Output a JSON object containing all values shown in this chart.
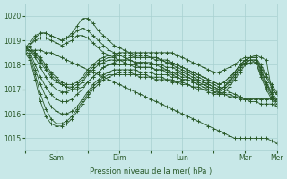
{
  "bg_color": "#c8e8e8",
  "grid_color": "#a8d0d0",
  "line_color": "#2a5a2a",
  "ylabel": "Pression niveau de la mer( hPa )",
  "ylim": [
    1014.5,
    1020.5
  ],
  "yticks": [
    1015,
    1016,
    1017,
    1018,
    1019,
    1020
  ],
  "xtick_labels": [
    "",
    "Sam",
    "",
    "Dim",
    "",
    "Lun",
    "",
    "Mar",
    "Mer"
  ],
  "xtick_positions": [
    0,
    24,
    48,
    72,
    96,
    120,
    144,
    168,
    192
  ],
  "series": [
    {
      "x": [
        0,
        4,
        8,
        12,
        16,
        20,
        24,
        28,
        32,
        36,
        40,
        44,
        48,
        52,
        56,
        60,
        64,
        68,
        72,
        76,
        80,
        84,
        88,
        92,
        96,
        100,
        104,
        108,
        112,
        116,
        120,
        124,
        128,
        132,
        136,
        140,
        144,
        148,
        152,
        156,
        160,
        164,
        168,
        172,
        176,
        180,
        184,
        188,
        192
      ],
      "y": [
        1018.6,
        1018.6,
        1018.6,
        1018.6,
        1018.5,
        1018.5,
        1018.4,
        1018.3,
        1018.2,
        1018.1,
        1018.0,
        1017.9,
        1017.8,
        1017.7,
        1017.6,
        1017.5,
        1017.4,
        1017.3,
        1017.2,
        1017.1,
        1017.0,
        1016.9,
        1016.8,
        1016.7,
        1016.6,
        1016.5,
        1016.4,
        1016.3,
        1016.2,
        1016.1,
        1016.0,
        1015.9,
        1015.8,
        1015.7,
        1015.6,
        1015.5,
        1015.4,
        1015.3,
        1015.2,
        1015.1,
        1015.0,
        1015.0,
        1015.0,
        1015.0,
        1015.0,
        1015.0,
        1015.0,
        1014.9,
        1014.8
      ]
    },
    {
      "x": [
        0,
        4,
        8,
        12,
        16,
        20,
        24,
        28,
        32,
        36,
        40,
        44,
        48,
        52,
        56,
        60,
        64,
        68,
        72,
        76,
        80,
        84,
        88,
        92,
        96,
        100,
        104,
        108,
        112,
        116,
        120,
        124,
        128,
        132,
        136,
        140,
        144,
        148,
        152,
        156,
        160,
        164,
        168,
        172,
        176,
        180,
        184,
        188,
        192
      ],
      "y": [
        1018.7,
        1018.6,
        1018.5,
        1018.3,
        1018.0,
        1017.7,
        1017.5,
        1017.3,
        1017.2,
        1017.2,
        1017.3,
        1017.5,
        1017.8,
        1018.0,
        1018.2,
        1018.3,
        1018.4,
        1018.4,
        1018.5,
        1018.5,
        1018.5,
        1018.5,
        1018.5,
        1018.5,
        1018.5,
        1018.5,
        1018.5,
        1018.5,
        1018.5,
        1018.4,
        1018.3,
        1018.2,
        1018.1,
        1018.0,
        1017.9,
        1017.8,
        1017.7,
        1017.7,
        1017.8,
        1017.9,
        1018.0,
        1018.2,
        1018.3,
        1018.3,
        1018.4,
        1018.3,
        1018.2,
        1017.0,
        1016.8
      ]
    },
    {
      "x": [
        0,
        4,
        8,
        12,
        16,
        20,
        24,
        28,
        32,
        36,
        40,
        44,
        48,
        52,
        56,
        60,
        64,
        68,
        72,
        76,
        80,
        84,
        88,
        92,
        96,
        100,
        104,
        108,
        112,
        116,
        120,
        124,
        128,
        132,
        136,
        140,
        144,
        148,
        152,
        156,
        160,
        164,
        168,
        172,
        176,
        180,
        184,
        188,
        192
      ],
      "y": [
        1018.7,
        1018.6,
        1018.4,
        1018.1,
        1017.8,
        1017.5,
        1017.3,
        1017.2,
        1017.1,
        1017.1,
        1017.2,
        1017.4,
        1017.7,
        1017.9,
        1018.1,
        1018.2,
        1018.3,
        1018.3,
        1018.4,
        1018.4,
        1018.4,
        1018.3,
        1018.3,
        1018.3,
        1018.3,
        1018.2,
        1018.2,
        1018.1,
        1018.1,
        1018.0,
        1017.9,
        1017.8,
        1017.7,
        1017.6,
        1017.5,
        1017.4,
        1017.3,
        1017.2,
        1017.3,
        1017.5,
        1017.7,
        1018.0,
        1018.2,
        1018.3,
        1018.3,
        1017.8,
        1017.3,
        1016.8,
        1016.5
      ]
    },
    {
      "x": [
        0,
        4,
        8,
        12,
        16,
        20,
        24,
        28,
        32,
        36,
        40,
        44,
        48,
        52,
        56,
        60,
        64,
        68,
        72,
        76,
        80,
        84,
        88,
        92,
        96,
        100,
        104,
        108,
        112,
        116,
        120,
        124,
        128,
        132,
        136,
        140,
        144,
        148,
        152,
        156,
        160,
        164,
        168,
        172,
        176,
        180,
        184,
        188,
        192
      ],
      "y": [
        1018.8,
        1018.7,
        1018.5,
        1018.2,
        1017.9,
        1017.6,
        1017.4,
        1017.2,
        1017.1,
        1017.0,
        1017.0,
        1017.1,
        1017.3,
        1017.5,
        1017.7,
        1017.9,
        1018.0,
        1018.1,
        1018.2,
        1018.2,
        1018.3,
        1018.3,
        1018.3,
        1018.3,
        1018.3,
        1018.3,
        1018.2,
        1018.2,
        1018.1,
        1018.0,
        1017.9,
        1017.8,
        1017.7,
        1017.6,
        1017.5,
        1017.4,
        1017.3,
        1017.2,
        1017.3,
        1017.5,
        1017.7,
        1018.0,
        1018.2,
        1018.3,
        1018.3,
        1018.0,
        1017.6,
        1017.2,
        1016.9
      ]
    },
    {
      "x": [
        0,
        4,
        8,
        12,
        16,
        20,
        24,
        28,
        32,
        36,
        40,
        44,
        48,
        52,
        56,
        60,
        64,
        68,
        72,
        76,
        80,
        84,
        88,
        92,
        96,
        100,
        104,
        108,
        112,
        116,
        120,
        124,
        128,
        132,
        136,
        140,
        144,
        148,
        152,
        156,
        160,
        164,
        168,
        172,
        176,
        180,
        184,
        188,
        192
      ],
      "y": [
        1018.7,
        1018.6,
        1018.3,
        1017.9,
        1017.5,
        1017.2,
        1017.0,
        1016.9,
        1016.9,
        1017.0,
        1017.1,
        1017.3,
        1017.6,
        1017.8,
        1018.0,
        1018.1,
        1018.2,
        1018.2,
        1018.2,
        1018.2,
        1018.2,
        1018.1,
        1018.1,
        1018.1,
        1018.1,
        1018.0,
        1018.0,
        1017.9,
        1017.9,
        1017.8,
        1017.7,
        1017.6,
        1017.5,
        1017.4,
        1017.3,
        1017.2,
        1017.1,
        1017.0,
        1017.1,
        1017.4,
        1017.7,
        1018.0,
        1018.2,
        1018.3,
        1018.3,
        1017.9,
        1017.5,
        1017.1,
        1016.8
      ]
    },
    {
      "x": [
        0,
        4,
        8,
        12,
        16,
        20,
        24,
        28,
        32,
        36,
        40,
        44,
        48,
        52,
        56,
        60,
        64,
        68,
        72,
        76,
        80,
        84,
        88,
        92,
        96,
        100,
        104,
        108,
        112,
        116,
        120,
        124,
        128,
        132,
        136,
        140,
        144,
        148,
        152,
        156,
        160,
        164,
        168,
        172,
        176,
        180,
        184,
        188,
        192
      ],
      "y": [
        1018.7,
        1018.5,
        1018.0,
        1017.5,
        1017.1,
        1016.8,
        1016.6,
        1016.5,
        1016.5,
        1016.6,
        1016.8,
        1017.0,
        1017.3,
        1017.5,
        1017.7,
        1017.9,
        1018.0,
        1018.0,
        1018.0,
        1018.0,
        1018.0,
        1017.9,
        1017.9,
        1017.9,
        1017.9,
        1017.8,
        1017.8,
        1017.8,
        1017.7,
        1017.7,
        1017.6,
        1017.5,
        1017.4,
        1017.4,
        1017.3,
        1017.2,
        1017.1,
        1017.0,
        1017.1,
        1017.3,
        1017.6,
        1017.9,
        1018.1,
        1018.2,
        1018.2,
        1017.8,
        1017.3,
        1016.9,
        1016.6
      ]
    },
    {
      "x": [
        0,
        4,
        8,
        12,
        16,
        20,
        24,
        28,
        32,
        36,
        40,
        44,
        48,
        52,
        56,
        60,
        64,
        68,
        72,
        76,
        80,
        84,
        88,
        92,
        96,
        100,
        104,
        108,
        112,
        116,
        120,
        124,
        128,
        132,
        136,
        140,
        144,
        148,
        152,
        156,
        160,
        164,
        168,
        172,
        176,
        180,
        184,
        188,
        192
      ],
      "y": [
        1018.6,
        1018.4,
        1017.8,
        1017.2,
        1016.7,
        1016.3,
        1016.1,
        1016.0,
        1016.0,
        1016.1,
        1016.3,
        1016.6,
        1016.9,
        1017.2,
        1017.4,
        1017.6,
        1017.7,
        1017.8,
        1017.8,
        1017.8,
        1017.8,
        1017.8,
        1017.7,
        1017.7,
        1017.7,
        1017.6,
        1017.6,
        1017.6,
        1017.5,
        1017.5,
        1017.4,
        1017.4,
        1017.3,
        1017.2,
        1017.2,
        1017.1,
        1017.0,
        1017.0,
        1017.1,
        1017.3,
        1017.6,
        1017.9,
        1018.1,
        1018.2,
        1018.2,
        1017.7,
        1017.2,
        1016.8,
        1016.5
      ]
    },
    {
      "x": [
        0,
        4,
        8,
        12,
        16,
        20,
        24,
        28,
        32,
        36,
        40,
        44,
        48,
        52,
        56,
        60,
        64,
        68,
        72,
        76,
        80,
        84,
        88,
        92,
        96,
        100,
        104,
        108,
        112,
        116,
        120,
        124,
        128,
        132,
        136,
        140,
        144,
        148,
        152,
        156,
        160,
        164,
        168,
        172,
        176,
        180,
        184,
        188,
        192
      ],
      "y": [
        1018.5,
        1018.3,
        1017.6,
        1016.8,
        1016.2,
        1015.8,
        1015.6,
        1015.6,
        1015.7,
        1015.9,
        1016.2,
        1016.5,
        1016.8,
        1017.1,
        1017.3,
        1017.5,
        1017.6,
        1017.6,
        1017.7,
        1017.7,
        1017.7,
        1017.6,
        1017.6,
        1017.6,
        1017.5,
        1017.5,
        1017.5,
        1017.4,
        1017.4,
        1017.3,
        1017.3,
        1017.2,
        1017.1,
        1017.1,
        1017.0,
        1017.0,
        1016.9,
        1016.9,
        1017.0,
        1017.2,
        1017.5,
        1017.8,
        1018.1,
        1018.2,
        1018.1,
        1017.6,
        1017.1,
        1016.7,
        1016.4
      ]
    },
    {
      "x": [
        0,
        4,
        8,
        12,
        16,
        20,
        24,
        28,
        32,
        36,
        40,
        44,
        48,
        52,
        56,
        60,
        64,
        68,
        72,
        76,
        80,
        84,
        88,
        92,
        96,
        100,
        104,
        108,
        112,
        116,
        120,
        124,
        128,
        132,
        136,
        140,
        144,
        148,
        152,
        156,
        160,
        164,
        168,
        172,
        176,
        180,
        184,
        188,
        192
      ],
      "y": [
        1018.5,
        1018.2,
        1017.4,
        1016.5,
        1015.9,
        1015.6,
        1015.5,
        1015.5,
        1015.6,
        1015.8,
        1016.1,
        1016.4,
        1016.7,
        1017.0,
        1017.2,
        1017.4,
        1017.5,
        1017.6,
        1017.6,
        1017.6,
        1017.6,
        1017.6,
        1017.5,
        1017.5,
        1017.5,
        1017.4,
        1017.4,
        1017.4,
        1017.3,
        1017.3,
        1017.2,
        1017.2,
        1017.1,
        1017.0,
        1017.0,
        1016.9,
        1016.8,
        1016.8,
        1016.9,
        1017.1,
        1017.4,
        1017.7,
        1018.0,
        1018.1,
        1018.1,
        1017.5,
        1017.0,
        1016.6,
        1016.3
      ]
    },
    {
      "x": [
        0,
        4,
        8,
        12,
        16,
        20,
        24,
        28,
        32,
        36,
        40,
        44,
        48,
        52,
        56,
        60,
        64,
        68,
        72,
        76,
        80,
        84,
        88,
        92,
        96,
        100,
        104,
        108,
        112,
        116,
        120,
        124,
        128,
        132,
        136,
        140,
        144,
        148,
        152,
        156,
        160,
        164,
        168,
        172,
        176,
        180,
        184,
        188,
        192
      ],
      "y": [
        1018.6,
        1018.8,
        1019.1,
        1019.3,
        1019.3,
        1019.2,
        1019.1,
        1019.0,
        1019.1,
        1019.3,
        1019.6,
        1019.9,
        1019.9,
        1019.7,
        1019.4,
        1019.2,
        1019.0,
        1018.8,
        1018.7,
        1018.6,
        1018.5,
        1018.4,
        1018.4,
        1018.4,
        1018.3,
        1018.3,
        1018.2,
        1018.1,
        1018.0,
        1017.9,
        1017.8,
        1017.7,
        1017.6,
        1017.5,
        1017.4,
        1017.3,
        1017.2,
        1017.1,
        1017.0,
        1016.9,
        1016.8,
        1016.7,
        1016.6,
        1016.5,
        1016.5,
        1016.4,
        1016.4,
        1016.4,
        1016.3
      ]
    },
    {
      "x": [
        0,
        4,
        8,
        12,
        16,
        20,
        24,
        28,
        32,
        36,
        40,
        44,
        48,
        52,
        56,
        60,
        64,
        68,
        72,
        76,
        80,
        84,
        88,
        92,
        96,
        100,
        104,
        108,
        112,
        116,
        120,
        124,
        128,
        132,
        136,
        140,
        144,
        148,
        152,
        156,
        160,
        164,
        168,
        172,
        176,
        180,
        184,
        188,
        192
      ],
      "y": [
        1018.7,
        1018.9,
        1019.2,
        1019.3,
        1019.3,
        1019.2,
        1019.1,
        1019.0,
        1019.1,
        1019.2,
        1019.4,
        1019.5,
        1019.4,
        1019.2,
        1019.0,
        1018.8,
        1018.6,
        1018.5,
        1018.4,
        1018.3,
        1018.2,
        1018.1,
        1018.1,
        1018.1,
        1018.0,
        1018.0,
        1017.9,
        1017.8,
        1017.7,
        1017.6,
        1017.5,
        1017.5,
        1017.4,
        1017.3,
        1017.2,
        1017.1,
        1017.0,
        1016.9,
        1016.8,
        1016.8,
        1016.7,
        1016.7,
        1016.6,
        1016.6,
        1016.6,
        1016.6,
        1016.6,
        1016.6,
        1016.6
      ]
    },
    {
      "x": [
        0,
        4,
        8,
        12,
        16,
        20,
        24,
        28,
        32,
        36,
        40,
        44,
        48,
        52,
        56,
        60,
        64,
        68,
        72,
        76,
        80,
        84,
        88,
        92,
        96,
        100,
        104,
        108,
        112,
        116,
        120,
        124,
        128,
        132,
        136,
        140,
        144,
        148,
        152,
        156,
        160,
        164,
        168,
        172,
        176,
        180,
        184,
        188,
        192
      ],
      "y": [
        1018.6,
        1018.8,
        1019.0,
        1019.1,
        1019.1,
        1019.0,
        1018.9,
        1018.8,
        1018.9,
        1019.0,
        1019.2,
        1019.2,
        1019.1,
        1018.9,
        1018.7,
        1018.5,
        1018.4,
        1018.3,
        1018.2,
        1018.1,
        1018.0,
        1018.0,
        1017.9,
        1017.9,
        1017.9,
        1017.8,
        1017.8,
        1017.7,
        1017.6,
        1017.5,
        1017.4,
        1017.4,
        1017.3,
        1017.2,
        1017.1,
        1017.0,
        1016.9,
        1016.8,
        1016.8,
        1016.7,
        1016.7,
        1016.6,
        1016.6,
        1016.6,
        1016.6,
        1016.6,
        1016.6,
        1016.6,
        1016.5
      ]
    }
  ]
}
